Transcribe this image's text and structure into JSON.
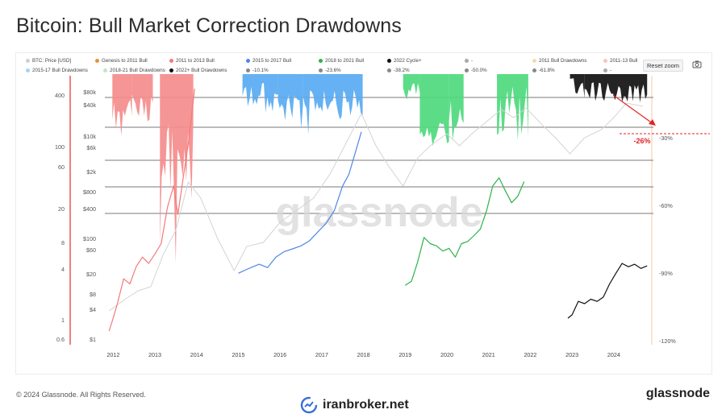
{
  "title": "Bitcoin: Bull Market Correction Drawdowns",
  "legend": [
    {
      "label": "BTC: Price [USD]",
      "color": "#cfcfcf"
    },
    {
      "label": "Genesis to 2011 Bull",
      "color": "#e8903a"
    },
    {
      "label": "2011 to 2013 Bull",
      "color": "#f47a7a"
    },
    {
      "label": "2015 to 2017 Bull",
      "color": "#4f86e8"
    },
    {
      "label": "2018 to 2021 Bull",
      "color": "#2cb34a"
    },
    {
      "label": "2022 Cycle+",
      "color": "#111111"
    },
    {
      "label": "-",
      "color": "#aaaaaa"
    },
    {
      "label": "2011 Bull Drawdowns",
      "color": "#f6d9b8"
    },
    {
      "label": "2011-13 Bull",
      "color": "#f7c6c0"
    },
    {
      "label": "2015-17 Bull Drawdowns",
      "color": "#a9d1f5"
    },
    {
      "label": "2018-21 Bull Drawdowns",
      "color": "#b9e8c6"
    },
    {
      "label": "2022+ Bull Drawdowns",
      "color": "#111111"
    },
    {
      "label": "-10.1%",
      "color": "#888888"
    },
    {
      "label": "-23.6%",
      "color": "#888888"
    },
    {
      "label": "-38.2%",
      "color": "#888888"
    },
    {
      "label": "-50.0%",
      "color": "#888888"
    },
    {
      "label": "-61.8%",
      "color": "#888888"
    },
    {
      "label": "-",
      "color": "#aaaaaa"
    }
  ],
  "reset_zoom_label": "Reset zoom",
  "watermark": "glassnode",
  "annotation": "-26%",
  "footer_copyright": "© 2024 Glassnode. All Rights Reserved.",
  "footer_logo": "glassnode",
  "brand_text": "iranbroker.net",
  "colors": {
    "red": "#f47a7a",
    "blue": "#4f86e8",
    "green": "#2cb34a",
    "black": "#111111",
    "gray": "#d4d4d4",
    "blue_fill": "#58aaf2",
    "green_fill": "#4fd97e",
    "red_fill": "#f58c8c",
    "accent_red": "#e02424"
  },
  "chart_data": {
    "type": "line",
    "title": "Bitcoin: Bull Market Correction Drawdowns",
    "x_ticks": [
      "2012",
      "2013",
      "2014",
      "2015",
      "2016",
      "2017",
      "2018",
      "2019",
      "2020",
      "2021",
      "2022",
      "2023",
      "2024"
    ],
    "left_axis_ticks": [
      "400",
      "100",
      "60",
      "20",
      "8",
      "4",
      "1",
      "0.6"
    ],
    "inner_axis_ticks": [
      "$80k",
      "$40k",
      "$10k",
      "$6k",
      "$2k",
      "$800",
      "$400",
      "$100",
      "$60",
      "$20",
      "$8",
      "$4",
      "$1"
    ],
    "right_axis_ticks": [
      "-30%",
      "-60%",
      "-90%",
      "-120%"
    ],
    "drawdown_levels": [
      "-10.1%",
      "-23.6%",
      "-38.2%",
      "-50.0%",
      "-61.8%"
    ],
    "log_scale": true,
    "series": [
      {
        "name": "2011 to 2013 Bull",
        "color": "#f47a7a",
        "x": [
          2011.9,
          2012.0,
          2012.1,
          2012.25,
          2012.4,
          2012.55,
          2012.7,
          2012.85,
          2013.0,
          2013.15,
          2013.3,
          2013.45,
          2013.55,
          2013.7,
          2013.8,
          2013.9,
          2013.95
        ],
        "y": [
          0.7,
          1.0,
          1.5,
          3.0,
          2.6,
          4.2,
          5.5,
          4.6,
          6.0,
          8.0,
          22,
          40,
          18,
          60,
          130,
          350,
          600
        ]
      },
      {
        "name": "2015 to 2017 Bull",
        "color": "#4f86e8",
        "x": [
          2015.0,
          2015.2,
          2015.35,
          2015.5,
          2015.7,
          2015.9,
          2016.1,
          2016.3,
          2016.5,
          2016.7,
          2016.9,
          2017.1,
          2017.3,
          2017.5,
          2017.65,
          2017.8,
          2017.95
        ],
        "y": [
          3.5,
          3.9,
          4.2,
          4.5,
          4.1,
          5.5,
          6.4,
          6.9,
          7.5,
          8.6,
          11,
          14,
          20,
          40,
          55,
          100,
          180
        ]
      },
      {
        "name": "2018 to 2021 Bull",
        "color": "#2cb34a",
        "x": [
          2019.0,
          2019.15,
          2019.3,
          2019.45,
          2019.6,
          2019.75,
          2019.9,
          2020.05,
          2020.2,
          2020.35,
          2020.5,
          2020.65,
          2020.8,
          2020.95,
          2021.1,
          2021.25,
          2021.4,
          2021.55,
          2021.7,
          2021.85
        ],
        "y": [
          2.5,
          2.8,
          4.8,
          9.5,
          8.0,
          7.5,
          6.5,
          7.0,
          5.5,
          8.0,
          8.5,
          10,
          12,
          20,
          40,
          50,
          35,
          25,
          30,
          45
        ]
      },
      {
        "name": "2022 Cycle+",
        "color": "#111111",
        "x": [
          2022.9,
          2023.0,
          2023.15,
          2023.3,
          2023.45,
          2023.6,
          2023.75,
          2023.9,
          2024.05,
          2024.2,
          2024.35,
          2024.5,
          2024.65,
          2024.8
        ],
        "y": [
          1.0,
          1.1,
          1.6,
          1.5,
          1.7,
          1.6,
          1.8,
          2.6,
          3.5,
          4.6,
          4.2,
          4.5,
          4.0,
          4.3
        ]
      }
    ]
  }
}
